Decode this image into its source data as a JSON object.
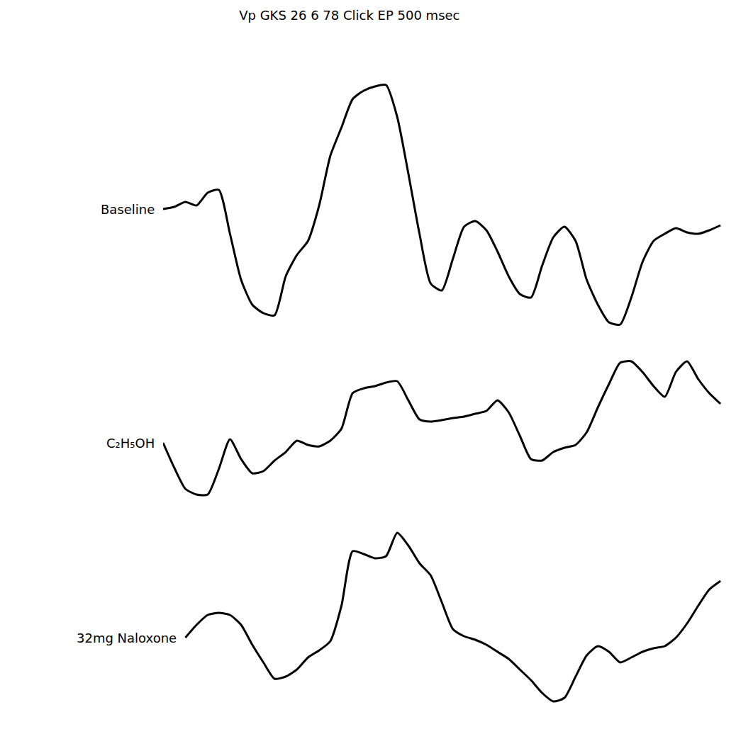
{
  "chart_data": {
    "type": "line",
    "title": "Vp GKS 26 6 78 Click EP 500 msec",
    "x": [
      0,
      10,
      20,
      30,
      40,
      50,
      60,
      70,
      80,
      90,
      100,
      110,
      120,
      130,
      140,
      150,
      160,
      170,
      180,
      190,
      200,
      210,
      220,
      230,
      240,
      250,
      260,
      270,
      280,
      290,
      300,
      310,
      320,
      330,
      340,
      350,
      360,
      370,
      380,
      390,
      400,
      410,
      420,
      430,
      440,
      450,
      460,
      470,
      480,
      490,
      500
    ],
    "xlim": [
      0,
      505
    ],
    "ylim": [
      0,
      1036
    ],
    "tick_labels": false,
    "grid": false,
    "series": [
      {
        "name": "Baseline",
        "color": "#000000",
        "values": [
          741,
          744,
          751,
          746,
          764,
          768,
          706,
          641,
          606,
          594,
          591,
          646,
          676,
          696,
          746,
          816,
          856,
          896,
          908,
          914,
          916,
          871,
          791,
          706,
          636,
          626,
          671,
          716,
          724,
          711,
          681,
          646,
          621,
          616,
          661,
          701,
          716,
          696,
          641,
          606,
          581,
          578,
          616,
          666,
          696,
          706,
          714,
          708,
          706,
          711,
          718
        ]
      },
      {
        "name": "C₂H₅OH",
        "color": "#000000",
        "values": [
          411,
          376,
          346,
          338,
          338,
          374,
          416,
          388,
          368,
          371,
          386,
          398,
          414,
          408,
          406,
          414,
          431,
          481,
          488,
          491,
          496,
          498,
          471,
          444,
          441,
          443,
          446,
          448,
          452,
          456,
          471,
          454,
          421,
          388,
          386,
          398,
          404,
          408,
          426,
          461,
          494,
          524,
          526,
          511,
          491,
          476,
          511,
          526,
          501,
          481,
          466
        ]
      },
      {
        "name": "32mg Naloxone",
        "color": "#000000",
        "values": [
          null,
          null,
          136,
          154,
          168,
          171,
          168,
          154,
          126,
          101,
          78,
          81,
          91,
          108,
          118,
          131,
          181,
          258,
          254,
          248,
          251,
          284,
          266,
          241,
          224,
          186,
          148,
          138,
          133,
          126,
          116,
          106,
          91,
          76,
          58,
          46,
          51,
          81,
          111,
          124,
          116,
          101,
          108,
          116,
          121,
          124,
          136,
          156,
          181,
          204,
          216
        ]
      }
    ]
  }
}
